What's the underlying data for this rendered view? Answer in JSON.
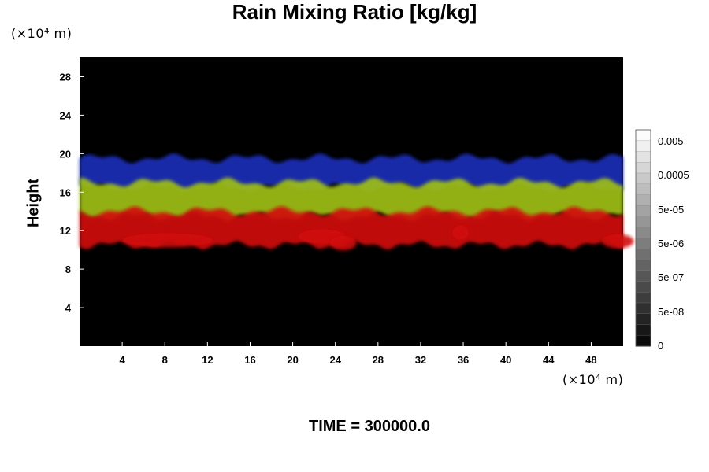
{
  "chart_data": {
    "type": "heatmap",
    "title": "Rain Mixing Ratio [kg/kg]",
    "ylabel": "Height",
    "x_unit": "(×10⁴ m)",
    "y_unit": "(×10⁴ m)",
    "xlim": [
      0,
      51
    ],
    "ylim": [
      0,
      30
    ],
    "x_ticks": [
      4,
      8,
      12,
      16,
      20,
      24,
      28,
      32,
      36,
      40,
      44,
      48
    ],
    "y_ticks": [
      4,
      8,
      12,
      16,
      20,
      24,
      28
    ],
    "bands": [
      {
        "name": "blue",
        "color": "#1c2fb8",
        "y_range": [
          16.5,
          19.5
        ]
      },
      {
        "name": "yellow-green",
        "color": "#9fbf16",
        "y_range": [
          13.5,
          17
        ]
      },
      {
        "name": "red",
        "color": "#d10e0e",
        "y_range": [
          10.5,
          14
        ]
      }
    ],
    "colorbar": {
      "labels": [
        "0.005",
        "0.0005",
        "5e-05",
        "5e-06",
        "5e-07",
        "5e-08",
        "0"
      ]
    },
    "background_color": "#000000"
  },
  "footer": {
    "time_label": "TIME = 300000.0"
  }
}
